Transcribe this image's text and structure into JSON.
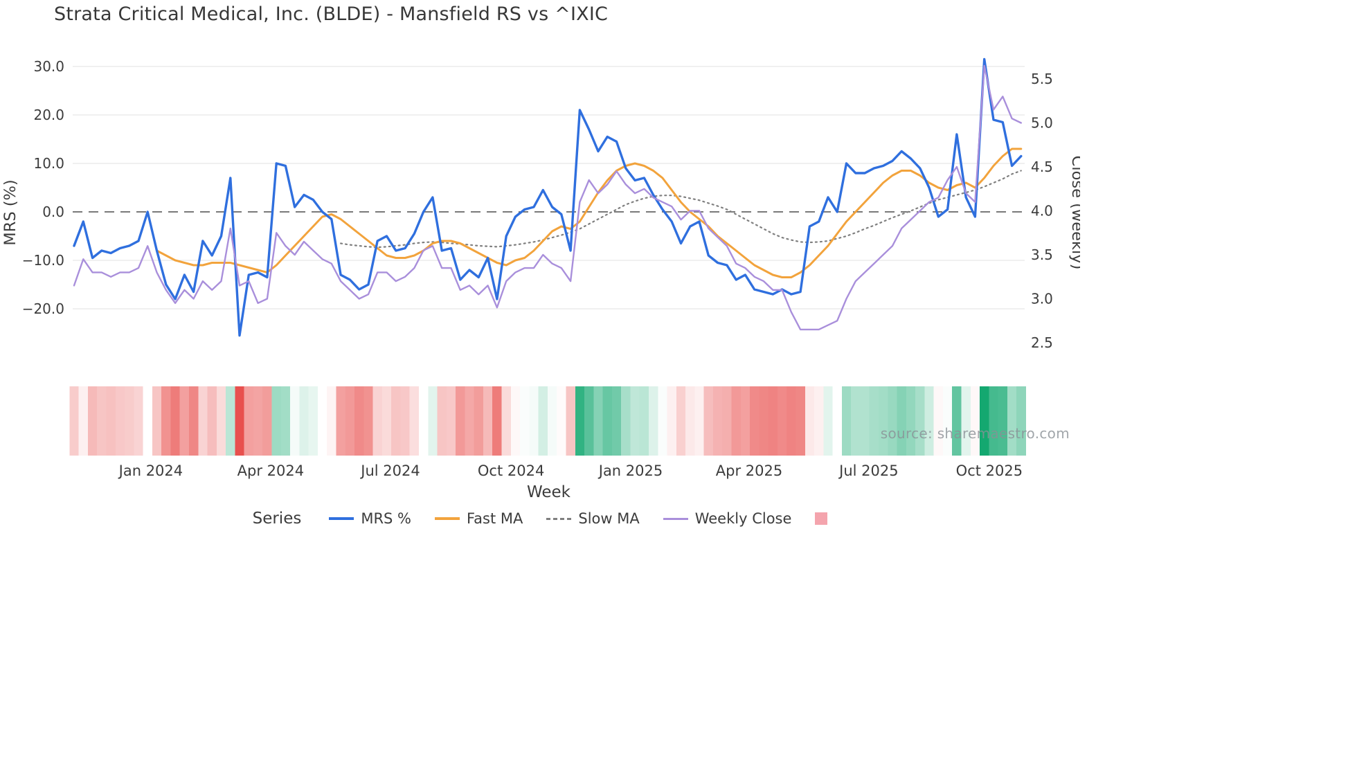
{
  "chart_data": {
    "type": "line",
    "title": "Strata Critical Medical, Inc. (BLDE) - Mansfield RS vs ^IXIC",
    "watermark": "source: sharemaestro.com",
    "xlabel": "Week",
    "ylabel_left": "MRS (%)",
    "ylabel_right": "Close (weekly)",
    "n_points": 104,
    "x_unit": "weekly index (Nov 2023 – Oct 2025)",
    "ylim_left": [
      -32,
      31.6
    ],
    "ylim_right": [
      2.47,
      5.7
    ],
    "grid": "horizontal, light gray; dashed dark line at 0",
    "axis_left": {
      "label": "MRS (%)",
      "ticks": [
        {
          "value": 30,
          "label": "30.0"
        },
        {
          "value": 20,
          "label": "20.0"
        },
        {
          "value": 10,
          "label": "10.0"
        },
        {
          "value": 0,
          "label": "0.0"
        },
        {
          "value": -10,
          "label": "−10.0"
        },
        {
          "value": -20,
          "label": "−20.0"
        }
      ]
    },
    "axis_right": {
      "label": "Close (weekly)",
      "ticks": [
        {
          "value": 5.5,
          "label": "5.5"
        },
        {
          "value": 5.0,
          "label": "5.0"
        },
        {
          "value": 4.5,
          "label": "4.5"
        },
        {
          "value": 4.0,
          "label": "4.0"
        },
        {
          "value": 3.5,
          "label": "3.5"
        },
        {
          "value": 3.0,
          "label": "3.0"
        },
        {
          "value": 2.5,
          "label": "2.5"
        }
      ]
    },
    "axis_x": {
      "label": "Week",
      "ticks": [
        {
          "index": 8.35,
          "label": "Jan 2024"
        },
        {
          "index": 21.38,
          "label": "Apr 2024"
        },
        {
          "index": 34.41,
          "label": "Jul 2024"
        },
        {
          "index": 47.52,
          "label": "Oct 2024"
        },
        {
          "index": 60.54,
          "label": "Jan 2025"
        },
        {
          "index": 73.42,
          "label": "Apr 2025"
        },
        {
          "index": 86.44,
          "label": "Jul 2025"
        },
        {
          "index": 99.54,
          "label": "Oct 2025"
        }
      ]
    },
    "series": [
      {
        "name": "MRS %",
        "axis": "left",
        "color": "#2f6fde",
        "width": 3.4,
        "dash": null,
        "values": [
          -7,
          -2,
          -9.5,
          -8,
          -8.5,
          -7.5,
          -7,
          -6,
          0,
          -8,
          -15,
          -18,
          -13,
          -16.5,
          -6,
          -9,
          -5,
          7,
          -25.5,
          -13,
          -12.5,
          -13.5,
          10,
          9.5,
          1,
          3.5,
          2.5,
          0,
          -1.5,
          -13,
          -14,
          -16,
          -15,
          -6,
          -5,
          -8,
          -7.5,
          -4.5,
          0,
          3,
          -8,
          -7.5,
          -14,
          -12,
          -13.5,
          -9.5,
          -18,
          -5,
          -1,
          0.5,
          1,
          4.5,
          1,
          -0.5,
          -8,
          21,
          17,
          12.5,
          15.5,
          14.5,
          9,
          6.5,
          7,
          3.5,
          0.5,
          -2,
          -6.5,
          -3,
          -2,
          -9,
          -10.5,
          -11,
          -14,
          -13,
          -16,
          -16.5,
          -17,
          -16,
          -17,
          -16.5,
          -3,
          -2,
          3,
          0,
          10,
          8,
          8,
          9,
          9.5,
          10.5,
          12.5,
          11,
          9,
          5,
          -1,
          0.5,
          16,
          3,
          -1,
          31.5,
          19,
          18.5,
          9.5,
          11.5
        ]
      },
      {
        "name": "Fast MA",
        "axis": "left",
        "color": "#f2a33c",
        "width": 3,
        "dash": null,
        "values": [
          null,
          null,
          null,
          null,
          null,
          null,
          null,
          null,
          null,
          -8,
          -9,
          -10,
          -10.5,
          -11,
          -11,
          -10.5,
          -10.5,
          -10.5,
          -11,
          -11.5,
          -12,
          -12.5,
          -11,
          -9,
          -7,
          -5,
          -3,
          -1,
          -0.5,
          -1.5,
          -3,
          -4.5,
          -6,
          -7.5,
          -9,
          -9.5,
          -9.5,
          -9,
          -8,
          -6.5,
          -6,
          -6,
          -6.5,
          -7.5,
          -8.5,
          -9.5,
          -10.5,
          -11,
          -10,
          -9.5,
          -8,
          -6,
          -4,
          -3,
          -3.5,
          -2,
          1,
          4,
          6.5,
          8.5,
          9.5,
          10,
          9.5,
          8.5,
          7,
          4.5,
          2,
          0,
          -1.5,
          -3,
          -5,
          -6.5,
          -8,
          -9.5,
          -11,
          -12,
          -13,
          -13.5,
          -13.5,
          -12.5,
          -11,
          -9,
          -7,
          -4.5,
          -2,
          0,
          2,
          4,
          6,
          7.5,
          8.5,
          8.5,
          7.5,
          6,
          5,
          4.5,
          5.5,
          6,
          5,
          7,
          9.5,
          11.5,
          13,
          13
        ]
      },
      {
        "name": "Slow MA",
        "axis": "left",
        "color": "#7f7f7f",
        "width": 2.2,
        "dash": "2 5",
        "values": [
          null,
          null,
          null,
          null,
          null,
          null,
          null,
          null,
          null,
          null,
          null,
          null,
          null,
          null,
          null,
          null,
          null,
          null,
          null,
          null,
          null,
          null,
          null,
          null,
          null,
          null,
          null,
          null,
          null,
          -6.5,
          -6.8,
          -7,
          -7.2,
          -7.3,
          -7.2,
          -7,
          -6.8,
          -6.5,
          -6.3,
          -6.2,
          -6.3,
          -6.5,
          -6.6,
          -6.8,
          -7,
          -7.1,
          -7.2,
          -7,
          -6.8,
          -6.5,
          -6.2,
          -5.8,
          -5.3,
          -4.8,
          -4.2,
          -3.5,
          -2.5,
          -1.5,
          -0.5,
          0.5,
          1.5,
          2.2,
          2.8,
          3.2,
          3.4,
          3.4,
          3.2,
          2.8,
          2.4,
          1.8,
          1.2,
          0.5,
          -0.5,
          -1.5,
          -2.5,
          -3.5,
          -4.5,
          -5.3,
          -5.8,
          -6.2,
          -6.3,
          -6.2,
          -6,
          -5.5,
          -5,
          -4.3,
          -3.5,
          -2.8,
          -2,
          -1.2,
          -0.5,
          0.2,
          1,
          1.8,
          2.5,
          3,
          3.5,
          4,
          4.5,
          5.2,
          6,
          6.8,
          7.8,
          8.5
        ]
      },
      {
        "name": "Weekly Close",
        "axis": "right",
        "color": "#a98fdb",
        "width": 2.4,
        "dash": null,
        "values": [
          3.15,
          3.45,
          3.3,
          3.3,
          3.25,
          3.3,
          3.3,
          3.35,
          3.6,
          3.3,
          3.1,
          2.95,
          3.1,
          3.0,
          3.2,
          3.1,
          3.2,
          3.8,
          3.15,
          3.2,
          2.95,
          3.0,
          3.75,
          3.6,
          3.5,
          3.65,
          3.55,
          3.45,
          3.4,
          3.2,
          3.1,
          3.0,
          3.05,
          3.3,
          3.3,
          3.2,
          3.25,
          3.35,
          3.55,
          3.6,
          3.35,
          3.35,
          3.1,
          3.15,
          3.05,
          3.15,
          2.9,
          3.2,
          3.3,
          3.35,
          3.35,
          3.5,
          3.4,
          3.35,
          3.2,
          4.1,
          4.35,
          4.2,
          4.3,
          4.45,
          4.3,
          4.2,
          4.25,
          4.15,
          4.1,
          4.05,
          3.9,
          4.0,
          4.0,
          3.8,
          3.7,
          3.6,
          3.4,
          3.35,
          3.25,
          3.2,
          3.1,
          3.1,
          2.85,
          2.65,
          2.65,
          2.65,
          2.7,
          2.75,
          3.0,
          3.2,
          3.3,
          3.4,
          3.5,
          3.6,
          3.8,
          3.9,
          4.0,
          4.1,
          4.15,
          4.35,
          4.5,
          4.2,
          4.1,
          5.65,
          5.15,
          5.3,
          5.05,
          5.0
        ]
      }
    ],
    "heatmap": {
      "description": "weekly strip colored by MRS % value (red negative, green positive)",
      "derived_from": "MRS %",
      "neg_color": "#e8504e",
      "pos_color": "#14a870",
      "max_abs": 24
    },
    "legend": {
      "title": "Series",
      "items": [
        {
          "label": "MRS %",
          "swatch": "line",
          "color": "#2f6fde",
          "thick": 4,
          "dashed": false
        },
        {
          "label": "Fast MA",
          "swatch": "line",
          "color": "#f2a33c",
          "thick": 4,
          "dashed": false
        },
        {
          "label": "Slow MA",
          "swatch": "line",
          "color": "#7f7f7f",
          "thick": 3,
          "dashed": true
        },
        {
          "label": "Weekly Close",
          "swatch": "line",
          "color": "#a98fdb",
          "thick": 3,
          "dashed": false
        },
        {
          "label": "",
          "swatch": "square",
          "color": "#f4a4ad"
        }
      ]
    },
    "colors": {
      "grid": "#e7e7e7",
      "zero_line": "#4d4d4d",
      "text": "#3c3c3c",
      "background": "#ffffff"
    }
  }
}
